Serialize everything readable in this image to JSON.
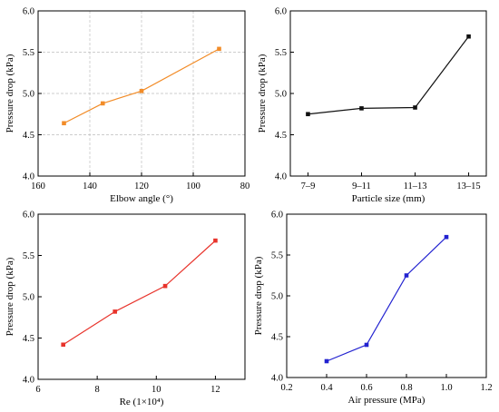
{
  "chart_data": [
    {
      "id": "elbow",
      "type": "line",
      "color": "#f28c28",
      "xlabel": "Elbow angle (°)",
      "ylabel": "Pressure drop (kPa)",
      "x_reversed": true,
      "xlim": [
        160,
        80
      ],
      "ylim": [
        4.0,
        6.0
      ],
      "xticks": [
        160,
        140,
        120,
        100,
        80
      ],
      "xtick_labels": [
        "160",
        "140",
        "120",
        "100",
        "80"
      ],
      "yticks": [
        4.0,
        4.5,
        5.0,
        5.5,
        6.0
      ],
      "ytick_labels": [
        "4.0",
        "4.5",
        "5.0",
        "5.5",
        "6.0"
      ],
      "grid": true,
      "series": [
        {
          "x": [
            150,
            135,
            120,
            90
          ],
          "y": [
            4.64,
            4.88,
            5.03,
            5.54
          ]
        }
      ]
    },
    {
      "id": "particle",
      "type": "line",
      "color": "#111111",
      "xlabel": "Particle size (mm)",
      "ylabel": "Pressure drop (kPa)",
      "categories": [
        "7–9",
        "9–11",
        "11–13",
        "13–15"
      ],
      "ylim": [
        4.0,
        6.0
      ],
      "yticks": [
        4.0,
        4.5,
        5.0,
        5.5,
        6.0
      ],
      "ytick_labels": [
        "4.0",
        "4.5",
        "5.0",
        "5.5",
        "6.0"
      ],
      "grid": false,
      "series": [
        {
          "values": [
            4.75,
            4.82,
            4.83,
            5.69
          ]
        }
      ]
    },
    {
      "id": "re",
      "type": "line",
      "color": "#e8332b",
      "xlabel": "Re (1×10⁴)",
      "ylabel": "Pressure drop (kPa)",
      "xlim": [
        6,
        13
      ],
      "ylim": [
        4.0,
        6.0
      ],
      "xticks": [
        6,
        8,
        10,
        12
      ],
      "xtick_labels": [
        "6",
        "8",
        "10",
        "12"
      ],
      "yticks": [
        4.0,
        4.5,
        5.0,
        5.5,
        6.0
      ],
      "ytick_labels": [
        "4.0",
        "4.5",
        "5.0",
        "5.5",
        "6.0"
      ],
      "grid": false,
      "series": [
        {
          "x": [
            6.85,
            8.6,
            10.3,
            12.0
          ],
          "y": [
            4.42,
            4.82,
            5.13,
            5.68
          ]
        }
      ]
    },
    {
      "id": "air",
      "type": "line",
      "color": "#2222d0",
      "xlabel": "Air pressure (MPa)",
      "ylabel": "Pressure drop (kPa)",
      "xlim": [
        0.2,
        1.2
      ],
      "ylim": [
        4.0,
        6.0
      ],
      "xticks": [
        0.2,
        0.4,
        0.6,
        0.8,
        1.0,
        1.2
      ],
      "xtick_labels": [
        "0.2",
        "0.4",
        "0.6",
        "0.8",
        "1.0",
        "1.2"
      ],
      "yticks": [
        4.0,
        4.5,
        5.0,
        5.5,
        6.0
      ],
      "ytick_labels": [
        "4.0",
        "4.5",
        "5.0",
        "5.5",
        "6.0"
      ],
      "grid": false,
      "series": [
        {
          "x": [
            0.4,
            0.6,
            0.8,
            1.0
          ],
          "y": [
            4.2,
            4.4,
            5.25,
            5.72
          ]
        }
      ]
    }
  ]
}
